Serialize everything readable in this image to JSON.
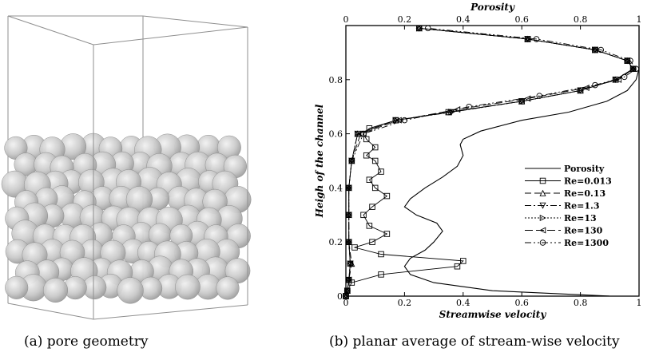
{
  "captions": {
    "a": "(a) pore geometry",
    "b": "(b) planar average of stream-wise velocity"
  },
  "left_panel": {
    "object": "packed-spheres-in-box",
    "sphere_color": "#c9c9c9",
    "box_color": "#8f8f8f"
  },
  "chart_data": {
    "type": "line",
    "top_axis_label": "Porosity",
    "xlabel": "Streamwise velocity",
    "ylabel": "Heigh of the channel",
    "xlim": [
      0,
      1
    ],
    "ylim": [
      0,
      1
    ],
    "x_ticks": [
      "0",
      "0.2",
      "0.4",
      "0.6",
      "0.8",
      "1"
    ],
    "y_ticks": [
      "0",
      "0.2",
      "0.4",
      "0.6",
      "0.8"
    ],
    "top_ticks": [
      "0",
      "0.2",
      "0.4",
      "0.6",
      "0.8",
      "1"
    ],
    "legend_position": "center-right",
    "porosity": {
      "name": "Porosity",
      "points": [
        [
          0.9,
          0.0
        ],
        [
          0.5,
          0.02
        ],
        [
          0.3,
          0.05
        ],
        [
          0.22,
          0.08
        ],
        [
          0.2,
          0.11
        ],
        [
          0.22,
          0.14
        ],
        [
          0.27,
          0.17
        ],
        [
          0.3,
          0.2
        ],
        [
          0.33,
          0.24
        ],
        [
          0.31,
          0.27
        ],
        [
          0.24,
          0.3
        ],
        [
          0.2,
          0.33
        ],
        [
          0.22,
          0.36
        ],
        [
          0.27,
          0.4
        ],
        [
          0.33,
          0.44
        ],
        [
          0.38,
          0.48
        ],
        [
          0.4,
          0.52
        ],
        [
          0.39,
          0.56
        ],
        [
          0.4,
          0.58
        ],
        [
          0.46,
          0.61
        ],
        [
          0.6,
          0.65
        ],
        [
          0.76,
          0.68
        ],
        [
          0.89,
          0.72
        ],
        [
          0.96,
          0.76
        ],
        [
          0.99,
          0.8
        ],
        [
          1.0,
          0.84
        ],
        [
          1.0,
          0.9
        ],
        [
          1.0,
          1.0
        ]
      ]
    },
    "series": [
      {
        "name": "Re=0.013",
        "marker": "square",
        "dash": "",
        "points": [
          [
            0.0,
            0.0
          ],
          [
            0.005,
            0.02
          ],
          [
            0.02,
            0.05
          ],
          [
            0.12,
            0.08
          ],
          [
            0.38,
            0.11
          ],
          [
            0.4,
            0.13
          ],
          [
            0.12,
            0.155
          ],
          [
            0.03,
            0.18
          ],
          [
            0.09,
            0.2
          ],
          [
            0.14,
            0.23
          ],
          [
            0.08,
            0.26
          ],
          [
            0.06,
            0.3
          ],
          [
            0.09,
            0.33
          ],
          [
            0.14,
            0.37
          ],
          [
            0.1,
            0.4
          ],
          [
            0.08,
            0.43
          ],
          [
            0.12,
            0.46
          ],
          [
            0.1,
            0.5
          ],
          [
            0.07,
            0.52
          ],
          [
            0.1,
            0.55
          ],
          [
            0.07,
            0.58
          ],
          [
            0.06,
            0.6
          ],
          [
            0.08,
            0.62
          ],
          [
            0.17,
            0.65
          ],
          [
            0.35,
            0.68
          ],
          [
            0.6,
            0.72
          ],
          [
            0.8,
            0.76
          ],
          [
            0.92,
            0.8
          ],
          [
            0.98,
            0.84
          ],
          [
            0.96,
            0.87
          ],
          [
            0.85,
            0.91
          ],
          [
            0.62,
            0.95
          ],
          [
            0.25,
            0.99
          ]
        ]
      },
      {
        "name": "Re=0.13",
        "marker": "triangle-up",
        "dash": "8,4",
        "points": [
          [
            0.0,
            0.0
          ],
          [
            0.005,
            0.02
          ],
          [
            0.01,
            0.06
          ],
          [
            0.02,
            0.12
          ],
          [
            0.01,
            0.2
          ],
          [
            0.01,
            0.3
          ],
          [
            0.01,
            0.4
          ],
          [
            0.02,
            0.5
          ],
          [
            0.04,
            0.6
          ],
          [
            0.17,
            0.65
          ],
          [
            0.35,
            0.68
          ],
          [
            0.6,
            0.72
          ],
          [
            0.8,
            0.76
          ],
          [
            0.92,
            0.8
          ],
          [
            0.98,
            0.84
          ],
          [
            0.96,
            0.87
          ],
          [
            0.85,
            0.91
          ],
          [
            0.62,
            0.95
          ],
          [
            0.25,
            0.99
          ]
        ]
      },
      {
        "name": "Re=1.3",
        "marker": "triangle-down",
        "dash": "8,3,2,3",
        "points": [
          [
            0.0,
            0.0
          ],
          [
            0.005,
            0.02
          ],
          [
            0.01,
            0.06
          ],
          [
            0.015,
            0.12
          ],
          [
            0.01,
            0.2
          ],
          [
            0.01,
            0.3
          ],
          [
            0.01,
            0.4
          ],
          [
            0.02,
            0.5
          ],
          [
            0.04,
            0.6
          ],
          [
            0.17,
            0.65
          ],
          [
            0.36,
            0.68
          ],
          [
            0.6,
            0.72
          ],
          [
            0.8,
            0.76
          ],
          [
            0.92,
            0.8
          ],
          [
            0.98,
            0.84
          ],
          [
            0.96,
            0.87
          ],
          [
            0.85,
            0.91
          ],
          [
            0.62,
            0.95
          ],
          [
            0.25,
            0.99
          ]
        ]
      },
      {
        "name": "Re=13",
        "marker": "triangle-right",
        "dash": "2,2",
        "points": [
          [
            0.0,
            0.0
          ],
          [
            0.005,
            0.02
          ],
          [
            0.01,
            0.06
          ],
          [
            0.015,
            0.12
          ],
          [
            0.01,
            0.2
          ],
          [
            0.01,
            0.3
          ],
          [
            0.01,
            0.4
          ],
          [
            0.02,
            0.5
          ],
          [
            0.04,
            0.6
          ],
          [
            0.17,
            0.65
          ],
          [
            0.36,
            0.68
          ],
          [
            0.6,
            0.72
          ],
          [
            0.8,
            0.76
          ],
          [
            0.92,
            0.8
          ],
          [
            0.98,
            0.84
          ],
          [
            0.96,
            0.87
          ],
          [
            0.85,
            0.91
          ],
          [
            0.62,
            0.95
          ],
          [
            0.25,
            0.99
          ]
        ]
      },
      {
        "name": "Re=130",
        "marker": "triangle-left",
        "dash": "10,4",
        "points": [
          [
            0.0,
            0.0
          ],
          [
            0.005,
            0.02
          ],
          [
            0.01,
            0.06
          ],
          [
            0.015,
            0.12
          ],
          [
            0.01,
            0.2
          ],
          [
            0.01,
            0.3
          ],
          [
            0.01,
            0.4
          ],
          [
            0.02,
            0.5
          ],
          [
            0.05,
            0.6
          ],
          [
            0.18,
            0.65
          ],
          [
            0.38,
            0.69
          ],
          [
            0.62,
            0.73
          ],
          [
            0.82,
            0.77
          ],
          [
            0.93,
            0.8
          ],
          [
            0.98,
            0.84
          ],
          [
            0.96,
            0.87
          ],
          [
            0.85,
            0.91
          ],
          [
            0.62,
            0.95
          ],
          [
            0.25,
            0.99
          ]
        ]
      },
      {
        "name": "Re=1300",
        "marker": "circle",
        "dash": "8,3,2,3,2,3",
        "points": [
          [
            0.0,
            0.0
          ],
          [
            0.005,
            0.02
          ],
          [
            0.01,
            0.06
          ],
          [
            0.015,
            0.12
          ],
          [
            0.01,
            0.2
          ],
          [
            0.01,
            0.3
          ],
          [
            0.01,
            0.4
          ],
          [
            0.02,
            0.5
          ],
          [
            0.06,
            0.6
          ],
          [
            0.2,
            0.65
          ],
          [
            0.42,
            0.7
          ],
          [
            0.66,
            0.74
          ],
          [
            0.85,
            0.78
          ],
          [
            0.95,
            0.81
          ],
          [
            0.99,
            0.84
          ],
          [
            0.97,
            0.87
          ],
          [
            0.87,
            0.91
          ],
          [
            0.65,
            0.95
          ],
          [
            0.28,
            0.99
          ]
        ]
      }
    ]
  }
}
